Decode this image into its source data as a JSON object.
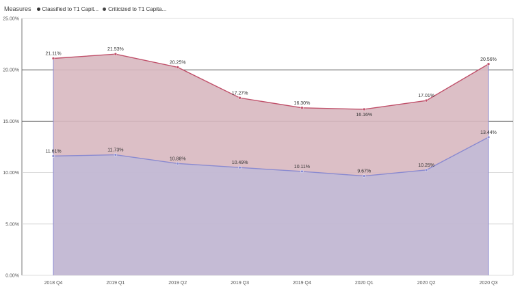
{
  "chart_data": {
    "type": "area",
    "title": "",
    "legend": {
      "title": "Measures",
      "placement": "top-left",
      "items": [
        {
          "name": "Classified to T1 Capit...",
          "color": "#333333"
        },
        {
          "name": "Criticized to T1 Capita...",
          "color": "#444444"
        }
      ]
    },
    "x": [
      "2018 Q4",
      "2019 Q1",
      "2019 Q2",
      "2019 Q3",
      "2019 Q4",
      "2020 Q1",
      "2020 Q2",
      "2020 Q3"
    ],
    "ylim": [
      0,
      25
    ],
    "yticks": [
      {
        "value": 0,
        "label": "0.00%"
      },
      {
        "value": 5,
        "label": "5.00%"
      },
      {
        "value": 10,
        "label": "10.00%"
      },
      {
        "value": 15,
        "label": "15.00%"
      },
      {
        "value": 20,
        "label": "20.00%"
      },
      {
        "value": 25,
        "label": "25.00%"
      }
    ],
    "grid": true,
    "series": [
      {
        "name": "Criticized to T1 Capita...",
        "color": "#c0506a",
        "fill": "#d8b8c0",
        "values": [
          21.11,
          21.53,
          20.25,
          17.27,
          16.3,
          16.16,
          17.01,
          20.56
        ],
        "labels": [
          "21.11%",
          "21.53%",
          "20.25%",
          "17.27%",
          "16.30%",
          "16.16%",
          "17.01%",
          "20.56%"
        ]
      },
      {
        "name": "Classified to T1 Capit...",
        "color": "#8a8ad0",
        "fill": "#c2bad6",
        "values": [
          11.61,
          11.73,
          10.88,
          10.49,
          10.11,
          9.67,
          10.25,
          13.44
        ],
        "labels": [
          "11.61%",
          "11.73%",
          "10.88%",
          "10.49%",
          "10.11%",
          "9.67%",
          "10.25%",
          "13.44%"
        ]
      }
    ]
  }
}
